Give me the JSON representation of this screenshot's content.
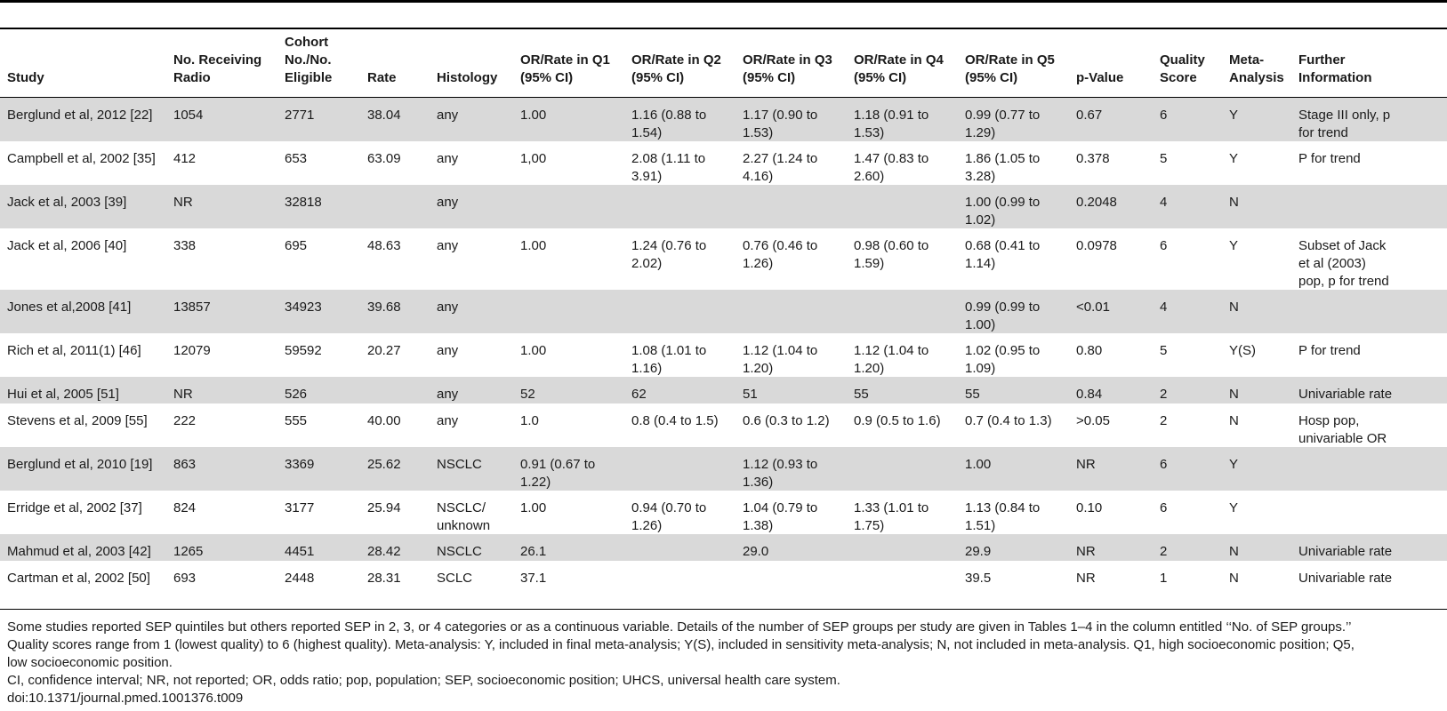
{
  "table": {
    "headers": [
      [
        "Study"
      ],
      [
        "No. Receiving",
        "Radio"
      ],
      [
        "Cohort",
        "No./No.",
        "Eligible"
      ],
      [
        "Rate"
      ],
      [
        "Histology"
      ],
      [
        "OR/Rate in Q1",
        "(95% CI)"
      ],
      [
        "OR/Rate in Q2",
        "(95% CI)"
      ],
      [
        "OR/Rate in Q3",
        "(95% CI)"
      ],
      [
        "OR/Rate in Q4",
        "(95% CI)"
      ],
      [
        "OR/Rate in Q5",
        "(95% CI)"
      ],
      [
        "p-Value"
      ],
      [
        "Quality",
        "Score"
      ],
      [
        "Meta-",
        "Analysis"
      ],
      [
        "Further",
        "Information"
      ]
    ],
    "rows": [
      {
        "cells": [
          [
            "Berglund et al, 2012 [22]"
          ],
          [
            "1054"
          ],
          [
            "2771"
          ],
          [
            "38.04"
          ],
          [
            "any"
          ],
          [
            "1.00"
          ],
          [
            "1.16 (0.88 to",
            "1.54)"
          ],
          [
            "1.17 (0.90 to",
            "1.53)"
          ],
          [
            "1.18 (0.91 to",
            "1.53)"
          ],
          [
            "0.99 (0.77 to",
            "1.29)"
          ],
          [
            "0.67"
          ],
          [
            "6"
          ],
          [
            "Y"
          ],
          [
            "Stage III only, p",
            "for trend"
          ]
        ]
      },
      {
        "cells": [
          [
            "Campbell et al, 2002 [35]"
          ],
          [
            "412"
          ],
          [
            "653"
          ],
          [
            "63.09"
          ],
          [
            "any"
          ],
          [
            "1,00"
          ],
          [
            "2.08 (1.11 to",
            "3.91)"
          ],
          [
            "2.27 (1.24 to",
            "4.16)"
          ],
          [
            "1.47 (0.83 to",
            "2.60)"
          ],
          [
            "1.86 (1.05 to",
            "3.28)"
          ],
          [
            "0.378"
          ],
          [
            "5"
          ],
          [
            "Y"
          ],
          [
            "P for trend"
          ]
        ]
      },
      {
        "cells": [
          [
            "Jack et al, 2003 [39]"
          ],
          [
            "NR"
          ],
          [
            "32818"
          ],
          [
            ""
          ],
          [
            "any"
          ],
          [
            ""
          ],
          [
            ""
          ],
          [
            ""
          ],
          [
            ""
          ],
          [
            "1.00 (0.99 to",
            "1.02)"
          ],
          [
            "0.2048"
          ],
          [
            "4"
          ],
          [
            "N"
          ],
          [
            ""
          ]
        ]
      },
      {
        "cells": [
          [
            "Jack et al, 2006 [40]"
          ],
          [
            "338"
          ],
          [
            "695"
          ],
          [
            "48.63"
          ],
          [
            "any"
          ],
          [
            "1.00"
          ],
          [
            "1.24 (0.76 to",
            "2.02)"
          ],
          [
            "0.76 (0.46 to",
            "1.26)"
          ],
          [
            "0.98 (0.60 to",
            "1.59)"
          ],
          [
            "0.68 (0.41 to",
            "1.14)"
          ],
          [
            "0.0978"
          ],
          [
            "6"
          ],
          [
            "Y"
          ],
          [
            "Subset of Jack",
            "et al (2003)",
            "pop, p for trend"
          ]
        ]
      },
      {
        "cells": [
          [
            "Jones et al,2008 [41]"
          ],
          [
            "13857"
          ],
          [
            "34923"
          ],
          [
            "39.68"
          ],
          [
            "any"
          ],
          [
            ""
          ],
          [
            ""
          ],
          [
            ""
          ],
          [
            ""
          ],
          [
            "0.99 (0.99 to",
            "1.00)"
          ],
          [
            "<0.01"
          ],
          [
            "4"
          ],
          [
            "N"
          ],
          [
            ""
          ]
        ]
      },
      {
        "cells": [
          [
            "Rich et al, 2011(1) [46]"
          ],
          [
            "12079"
          ],
          [
            "59592"
          ],
          [
            "20.27"
          ],
          [
            "any"
          ],
          [
            "1.00"
          ],
          [
            "1.08 (1.01 to",
            "1.16)"
          ],
          [
            "1.12 (1.04 to",
            "1.20)"
          ],
          [
            "1.12 (1.04 to",
            "1.20)"
          ],
          [
            "1.02 (0.95 to",
            "1.09)"
          ],
          [
            "0.80"
          ],
          [
            "5"
          ],
          [
            "Y(S)"
          ],
          [
            "P for trend"
          ]
        ]
      },
      {
        "cells": [
          [
            "Hui et al, 2005 [51]"
          ],
          [
            "NR"
          ],
          [
            "526"
          ],
          [
            ""
          ],
          [
            "any"
          ],
          [
            "52"
          ],
          [
            "62"
          ],
          [
            "51"
          ],
          [
            "55"
          ],
          [
            "55"
          ],
          [
            "0.84"
          ],
          [
            "2"
          ],
          [
            "N"
          ],
          [
            "Univariable rate"
          ]
        ]
      },
      {
        "cells": [
          [
            "Stevens et al, 2009 [55]"
          ],
          [
            "222"
          ],
          [
            "555"
          ],
          [
            "40.00"
          ],
          [
            "any"
          ],
          [
            "1.0"
          ],
          [
            "0.8 (0.4 to 1.5)"
          ],
          [
            "0.6 (0.3 to 1.2)"
          ],
          [
            "0.9 (0.5 to 1.6)"
          ],
          [
            "0.7 (0.4 to 1.3)"
          ],
          [
            ">0.05"
          ],
          [
            "2"
          ],
          [
            "N"
          ],
          [
            "Hosp pop,",
            "univariable OR"
          ]
        ]
      },
      {
        "cells": [
          [
            "Berglund et al, 2010 [19]"
          ],
          [
            "863"
          ],
          [
            "3369"
          ],
          [
            "25.62"
          ],
          [
            "NSCLC"
          ],
          [
            "0.91 (0.67 to",
            "1.22)"
          ],
          [
            ""
          ],
          [
            "1.12 (0.93 to",
            "1.36)"
          ],
          [
            ""
          ],
          [
            "1.00"
          ],
          [
            "NR"
          ],
          [
            "6"
          ],
          [
            "Y"
          ],
          [
            ""
          ]
        ]
      },
      {
        "cells": [
          [
            "Erridge et al, 2002 [37]"
          ],
          [
            "824"
          ],
          [
            "3177"
          ],
          [
            "25.94"
          ],
          [
            "NSCLC/",
            "unknown"
          ],
          [
            "1.00"
          ],
          [
            "0.94 (0.70 to",
            "1.26)"
          ],
          [
            "1.04 (0.79 to",
            "1.38)"
          ],
          [
            "1.33 (1.01 to",
            "1.75)"
          ],
          [
            "1.13 (0.84 to",
            "1.51)"
          ],
          [
            "0.10"
          ],
          [
            "6"
          ],
          [
            "Y"
          ],
          [
            ""
          ]
        ]
      },
      {
        "cells": [
          [
            "Mahmud et al, 2003 [42]"
          ],
          [
            "1265"
          ],
          [
            "4451"
          ],
          [
            "28.42"
          ],
          [
            "NSCLC"
          ],
          [
            "26.1"
          ],
          [
            ""
          ],
          [
            "29.0"
          ],
          [
            ""
          ],
          [
            "29.9"
          ],
          [
            "NR"
          ],
          [
            "2"
          ],
          [
            "N"
          ],
          [
            "Univariable rate"
          ]
        ]
      },
      {
        "cells": [
          [
            "Cartman et al, 2002 [50]"
          ],
          [
            "693"
          ],
          [
            "2448"
          ],
          [
            "28.31"
          ],
          [
            "SCLC"
          ],
          [
            "37.1"
          ],
          [
            ""
          ],
          [
            ""
          ],
          [
            ""
          ],
          [
            "39.5"
          ],
          [
            "NR"
          ],
          [
            "1"
          ],
          [
            "N"
          ],
          [
            "Univariable rate"
          ]
        ]
      }
    ]
  },
  "footnotes": [
    "Some studies reported SEP quintiles but others reported SEP in 2, 3, or 4 categories or as a continuous variable. Details of the number of SEP groups per study are given in Tables 1–4 in the column entitled ‘‘No. of SEP groups.’’",
    "Quality scores range from 1 (lowest quality) to 6 (highest quality). Meta-analysis: Y, included in final meta-analysis; Y(S), included in sensitivity meta-analysis; N, not included in meta-analysis. Q1, high socioeconomic position; Q5,",
    "low socioeconomic position.",
    "CI, confidence interval; NR, not reported; OR, odds ratio; pop, population; SEP, socioeconomic position; UHCS, universal health care system.",
    "doi:10.1371/journal.pmed.1001376.t009"
  ]
}
